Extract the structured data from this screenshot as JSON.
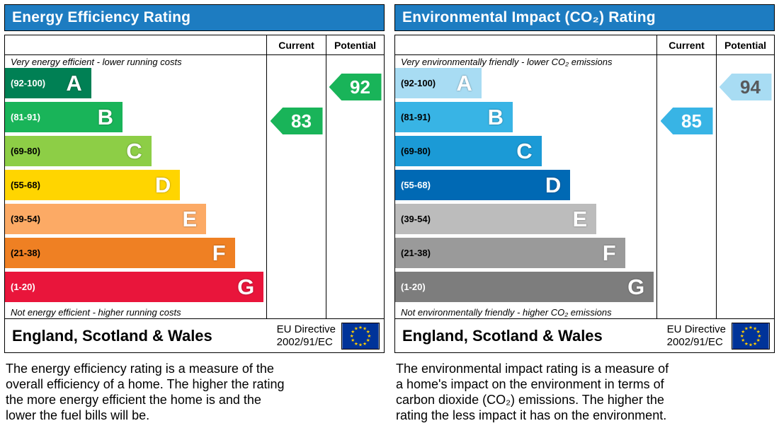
{
  "header_bg": "#1d7cc1",
  "eu_flag": {
    "bg": "#003399",
    "star_color": "#ffcc00"
  },
  "panels": [
    {
      "title": "Energy Efficiency Rating",
      "columns": {
        "current": "Current",
        "potential": "Potential"
      },
      "top_note": "Very energy efficient - lower running costs",
      "bottom_note": "Not energy efficient - higher running costs",
      "bands": [
        {
          "range": "(92-100)",
          "letter": "A",
          "color": "#008054",
          "range_color": "#ffffff"
        },
        {
          "range": "(81-91)",
          "letter": "B",
          "color": "#19b459",
          "range_color": "#ffffff"
        },
        {
          "range": "(69-80)",
          "letter": "C",
          "color": "#8dce46",
          "range_color": "#000000"
        },
        {
          "range": "(55-68)",
          "letter": "D",
          "color": "#ffd500",
          "range_color": "#000000"
        },
        {
          "range": "(39-54)",
          "letter": "E",
          "color": "#fcaa65",
          "range_color": "#000000"
        },
        {
          "range": "(21-38)",
          "letter": "F",
          "color": "#ef8023",
          "range_color": "#000000"
        },
        {
          "range": "(1-20)",
          "letter": "G",
          "color": "#e9153b",
          "range_color": "#ffffff"
        }
      ],
      "current": {
        "value": "83",
        "band_index": 1,
        "color": "#19b459",
        "text_color": "#ffffff"
      },
      "potential": {
        "value": "92",
        "band_index": 0,
        "color": "#19b459",
        "text_color": "#ffffff"
      },
      "footer": {
        "region": "England, Scotland & Wales",
        "directive_line1": "EU Directive",
        "directive_line2": "2002/91/EC"
      },
      "description_lines": [
        "The energy efficiency rating is a measure of the",
        "overall efficiency of a home. The higher the rating",
        "the more energy efficient the home is and the",
        "lower the fuel bills will be."
      ]
    },
    {
      "title": "Environmental Impact (CO₂) Rating",
      "columns": {
        "current": "Current",
        "potential": "Potential"
      },
      "top_note": "Very environmentally friendly - lower CO₂ emissions",
      "bottom_note": "Not environmentally friendly - higher CO₂ emissions",
      "bands": [
        {
          "range": "(92-100)",
          "letter": "A",
          "color": "#a8dcf3",
          "range_color": "#000000"
        },
        {
          "range": "(81-91)",
          "letter": "B",
          "color": "#38b4e5",
          "range_color": "#000000"
        },
        {
          "range": "(69-80)",
          "letter": "C",
          "color": "#1b9ad6",
          "range_color": "#000000"
        },
        {
          "range": "(55-68)",
          "letter": "D",
          "color": "#0069b4",
          "range_color": "#ffffff"
        },
        {
          "range": "(39-54)",
          "letter": "E",
          "color": "#bcbcbc",
          "range_color": "#000000"
        },
        {
          "range": "(21-38)",
          "letter": "F",
          "color": "#9a9a9a",
          "range_color": "#000000"
        },
        {
          "range": "(1-20)",
          "letter": "G",
          "color": "#7d7d7d",
          "range_color": "#ffffff"
        }
      ],
      "current": {
        "value": "85",
        "band_index": 1,
        "color": "#38b4e5",
        "text_color": "#ffffff"
      },
      "potential": {
        "value": "94",
        "band_index": 0,
        "color": "#a8dcf3",
        "text_color": "#58595b"
      },
      "footer": {
        "region": "England, Scotland & Wales",
        "directive_line1": "EU Directive",
        "directive_line2": "2002/91/EC"
      },
      "description_lines": [
        "The environmental impact rating is a measure of",
        "a home's impact on the environment in terms of",
        "carbon dioxide (CO₂) emissions. The higher the",
        "rating the less impact it has on the environment."
      ]
    }
  ],
  "chart_data": [
    {
      "type": "bar",
      "orientation": "horizontal",
      "title": "Energy Efficiency Rating",
      "categories": [
        "A (92-100)",
        "B (81-91)",
        "C (69-80)",
        "D (55-68)",
        "E (39-54)",
        "F (21-38)",
        "G (1-20)"
      ],
      "values": [
        33,
        45,
        56,
        67,
        77,
        88,
        99
      ],
      "current": 83,
      "current_band": "B",
      "potential": 92,
      "potential_band": "A",
      "columns": [
        "Current",
        "Potential"
      ],
      "top_label": "Very energy efficient - lower running costs",
      "bottom_label": "Not energy efficient - higher running costs",
      "footer": "England, Scotland & Wales — EU Directive 2002/91/EC"
    },
    {
      "type": "bar",
      "orientation": "horizontal",
      "title": "Environmental Impact (CO₂) Rating",
      "categories": [
        "A (92-100)",
        "B (81-91)",
        "C (69-80)",
        "D (55-68)",
        "E (39-54)",
        "F (21-38)",
        "G (1-20)"
      ],
      "values": [
        33,
        45,
        56,
        67,
        77,
        88,
        99
      ],
      "current": 85,
      "current_band": "B",
      "potential": 94,
      "potential_band": "A",
      "columns": [
        "Current",
        "Potential"
      ],
      "top_label": "Very environmentally friendly - lower CO₂ emissions",
      "bottom_label": "Not environmentally friendly - higher CO₂ emissions",
      "footer": "England, Scotland & Wales — EU Directive 2002/91/EC"
    }
  ]
}
